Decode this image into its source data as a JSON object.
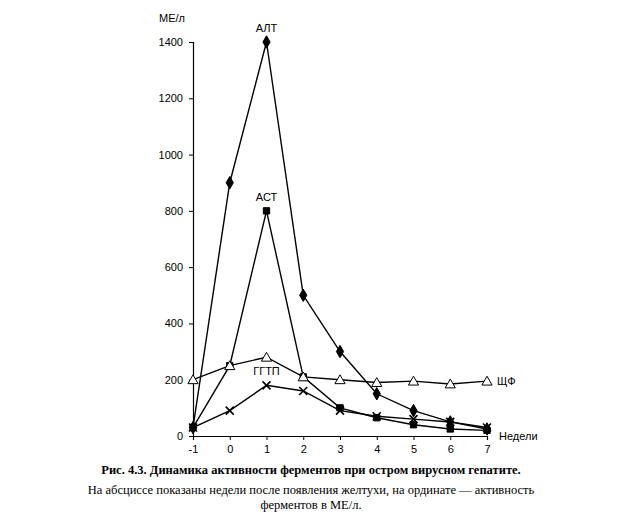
{
  "chart_data": {
    "type": "line",
    "title": "Рис. 4.3. Динамика активности ферментов при остром вирусном гепатите.",
    "subtitle": "На абсциссе показаны недели после появления желтухи, на ординате — активность ферментов в МЕ/л.",
    "x_label": "Недели",
    "y_label": "МЕ/л",
    "x": [
      -1,
      0,
      1,
      2,
      3,
      4,
      5,
      6,
      7
    ],
    "xlim": [
      -1,
      7
    ],
    "xticks": [
      -1,
      0,
      1,
      2,
      3,
      4,
      5,
      6,
      7
    ],
    "ylim": [
      0,
      1400
    ],
    "yticks": [
      0,
      200,
      400,
      600,
      800,
      1000,
      1200,
      1400
    ],
    "grid": false,
    "series": [
      {
        "name": "АЛТ",
        "color": "#000000",
        "marker": "diamond",
        "line_style": "solid",
        "values": [
          30,
          900,
          1400,
          500,
          300,
          150,
          90,
          50,
          25
        ]
      },
      {
        "name": "АСТ",
        "color": "#000000",
        "marker": "square",
        "line_style": "solid",
        "values": [
          30,
          250,
          800,
          210,
          100,
          65,
          40,
          25,
          20
        ]
      },
      {
        "name": "ЩФ",
        "color": "#000000",
        "marker": "triangle",
        "line_style": "solid",
        "values": [
          200,
          250,
          280,
          210,
          200,
          190,
          195,
          185,
          195
        ]
      },
      {
        "name": "ГГТП",
        "color": "#000000",
        "marker": "cross",
        "line_style": "solid",
        "values": [
          30,
          90,
          180,
          160,
          90,
          70,
          60,
          50,
          30
        ]
      }
    ]
  }
}
